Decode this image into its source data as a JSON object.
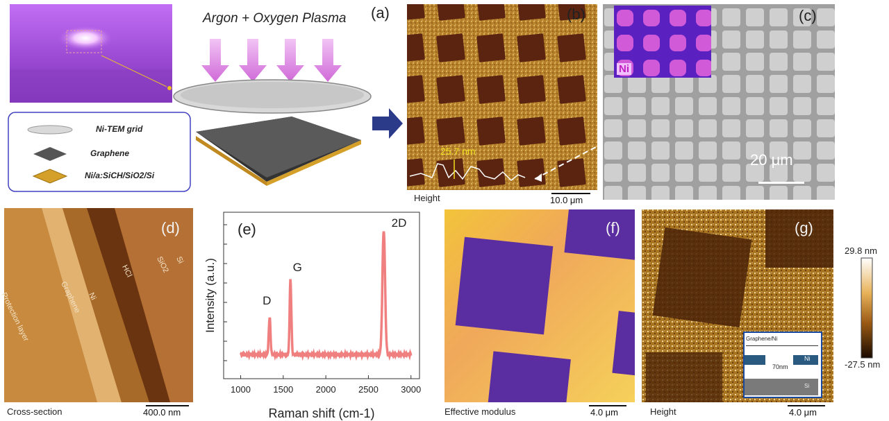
{
  "figure": {
    "panel_a": {
      "label": "(a)",
      "plasma_text": "Argon + Oxygen Plasma",
      "legend": [
        {
          "text": "Ni-TEM grid",
          "swatch": "#d9d9d9"
        },
        {
          "text": "Graphene",
          "swatch": "#555555"
        },
        {
          "text": "Ni/a:SiCH/SiO2/Si",
          "swatch": "#d4a02a"
        }
      ]
    },
    "panel_b": {
      "label": "(b)",
      "height_value": "25.7 nm",
      "caption": "Height",
      "scale": "10.0 μm"
    },
    "panel_c": {
      "label": "(c)",
      "inset_label": "Ni",
      "scale": "20 μm"
    },
    "panel_d": {
      "label": "(d)",
      "caption": "Cross-section",
      "scale": "400.0 nm",
      "layers": [
        "Protection layer",
        "Graphene",
        "Ni",
        "HCl",
        "SiO2",
        "Si"
      ]
    },
    "panel_e": {
      "label": "(e)",
      "peak_labels": [
        "D",
        "G",
        "2D"
      ]
    },
    "panel_f": {
      "label": "(f)",
      "caption": "Effective modulus",
      "scale": "4.0 μm"
    },
    "panel_g": {
      "label": "(g)",
      "caption": "Height",
      "scale": "4.0 μm",
      "colorbar_max": "29.8 nm",
      "colorbar_min": "-27.5 nm",
      "inset_texts": [
        "Graphene/Ni",
        "Ni",
        "70nm",
        "Si"
      ]
    }
  },
  "chart_data": {
    "type": "line",
    "xlabel": "Raman shift (cm-1)",
    "ylabel": "Intensity (a.u.)",
    "xlim": [
      800,
      3100
    ],
    "x_ticks": [
      1000,
      1500,
      2000,
      2500,
      3000
    ],
    "series_color": "#f08080",
    "peaks": [
      {
        "name": "D",
        "x": 1340,
        "y": 0.3
      },
      {
        "name": "G",
        "x": 1585,
        "y": 0.6
      },
      {
        "name": "2D",
        "x": 2680,
        "y": 1.0
      }
    ]
  }
}
